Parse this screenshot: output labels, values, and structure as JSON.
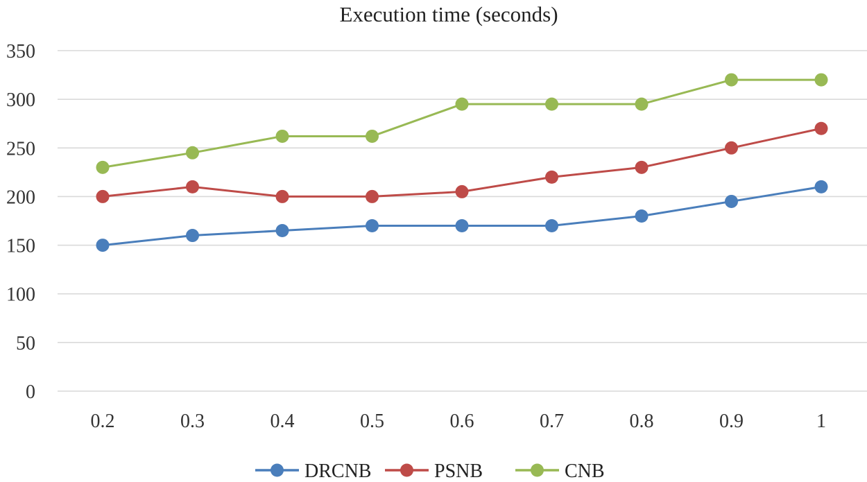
{
  "chart_data": {
    "type": "line",
    "title": "Execution time (seconds)",
    "xlabel": "",
    "ylabel": "",
    "categories": [
      "0.2",
      "0.3",
      "0.4",
      "0.5",
      "0.6",
      "0.7",
      "0.8",
      "0.9",
      "1"
    ],
    "yticks": [
      "0",
      "50",
      "100",
      "150",
      "200",
      "250",
      "300",
      "350"
    ],
    "ylim": [
      0,
      350
    ],
    "grid": true,
    "legend_position": "bottom",
    "series": [
      {
        "name": "DRCNB",
        "color": "#4a7ebb",
        "values": [
          150,
          160,
          165,
          170,
          170,
          170,
          180,
          195,
          210
        ]
      },
      {
        "name": "PSNB",
        "color": "#be4b48",
        "values": [
          200,
          210,
          200,
          200,
          205,
          220,
          230,
          250,
          270
        ]
      },
      {
        "name": "CNB",
        "color": "#98b954",
        "values": [
          230,
          245,
          262,
          262,
          295,
          295,
          295,
          320,
          320
        ]
      }
    ]
  }
}
